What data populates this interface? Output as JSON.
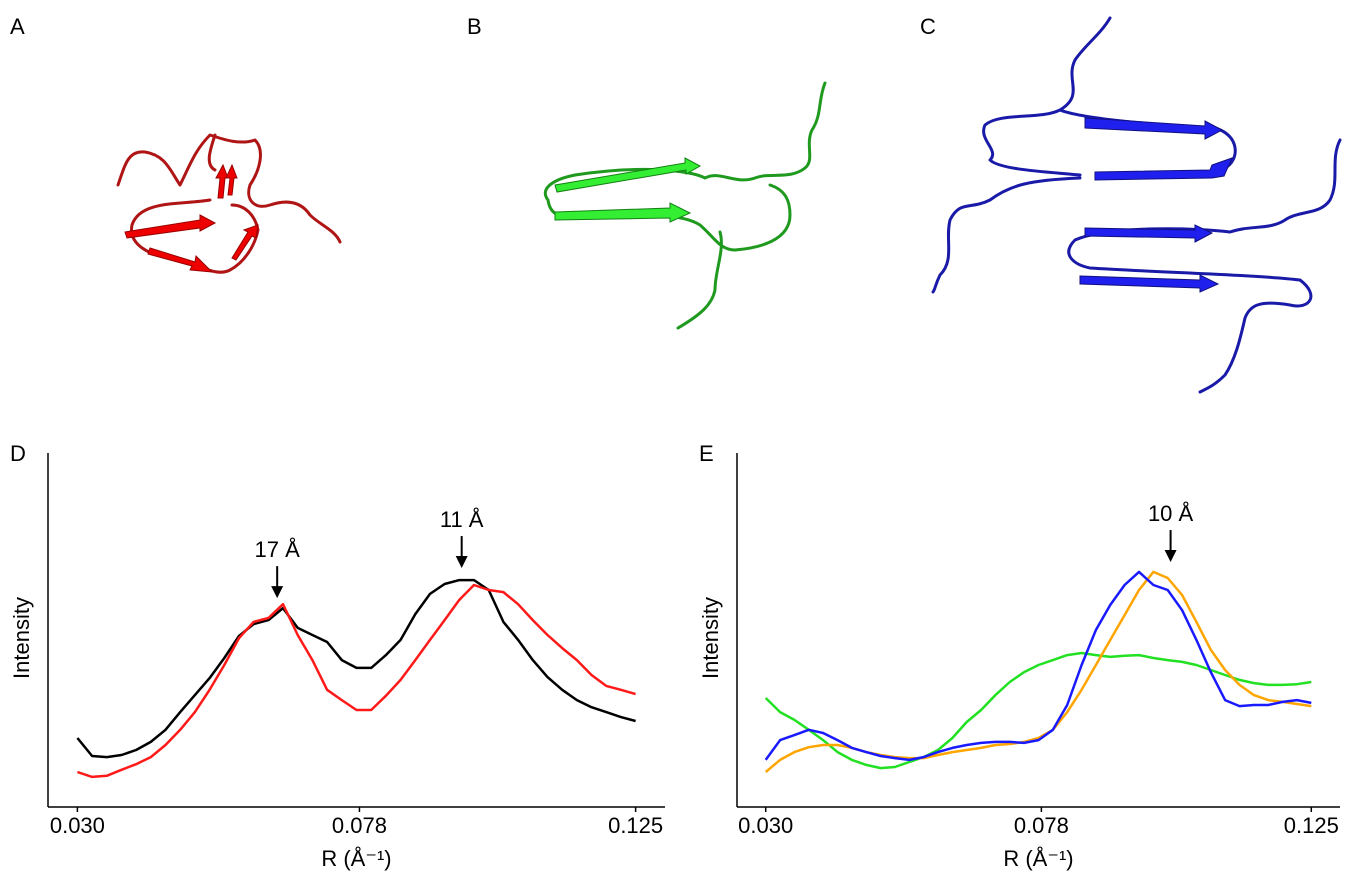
{
  "panels": [
    "A",
    "B",
    "C"
  ],
  "chart_data": [
    {
      "type": "line",
      "panel": "D",
      "y_label": "Intensity",
      "x_label": "R (Å⁻¹)",
      "xlim": [
        0.025,
        0.13
      ],
      "ylim": [
        0,
        100
      ],
      "xticks": [
        {
          "value": 0.03,
          "label": "0.030"
        },
        0.078,
        0.125
      ],
      "x": [
        0.03,
        0.0325,
        0.035,
        0.0375,
        0.04,
        0.0425,
        0.045,
        0.0475,
        0.05,
        0.0525,
        0.055,
        0.0575,
        0.06,
        0.0625,
        0.065,
        0.0675,
        0.07,
        0.0725,
        0.075,
        0.0775,
        0.08,
        0.0825,
        0.085,
        0.0875,
        0.09,
        0.0925,
        0.095,
        0.0975,
        0.1,
        0.1025,
        0.105,
        0.1075,
        0.11,
        0.1125,
        0.115,
        0.1175,
        0.12,
        0.1225,
        0.125
      ],
      "series": [
        {
          "color": "#000000",
          "values": [
            19.5,
            14.4,
            14.1,
            14.7,
            16.1,
            18.4,
            21.8,
            26.8,
            31.6,
            36.4,
            42.1,
            48.3,
            51.7,
            52.8,
            56.2,
            50.6,
            48.6,
            46.6,
            41.5,
            39.3,
            39.3,
            42.9,
            47.2,
            54.5,
            60.2,
            63.0,
            64.1,
            64.1,
            61.3,
            52.3,
            47.2,
            41.5,
            36.7,
            33.1,
            30.2,
            28.2,
            26.8,
            25.4,
            24.3
          ]
        },
        {
          "color": "#ff1a1a",
          "values": [
            9.9,
            8.5,
            8.8,
            10.5,
            12.1,
            14.1,
            17.5,
            21.8,
            26.8,
            33.1,
            40.1,
            47.7,
            52.3,
            53.4,
            57.3,
            48.6,
            41.5,
            33.1,
            30.2,
            27.4,
            27.4,
            31.4,
            35.9,
            41.5,
            47.2,
            52.8,
            58.5,
            62.7,
            61.3,
            60.7,
            57.3,
            52.8,
            48.6,
            44.9,
            41.5,
            37.3,
            34.2,
            33.1,
            31.9
          ]
        }
      ],
      "annotations": [
        {
          "text": "17 Å",
          "x": 0.064,
          "y": 59.0
        },
        {
          "text": "11 Å",
          "x": 0.0954,
          "y": 67.5
        }
      ]
    },
    {
      "type": "line",
      "panel": "E",
      "y_label": "Intensity",
      "x_label": "R (Å⁻¹)",
      "xlim": [
        0.025,
        0.13
      ],
      "ylim": [
        0,
        100
      ],
      "xticks": [
        {
          "value": 0.03,
          "label": "0.030"
        },
        0.078,
        0.125
      ],
      "x": [
        0.03,
        0.0325,
        0.035,
        0.0375,
        0.04,
        0.0425,
        0.045,
        0.0475,
        0.05,
        0.0525,
        0.055,
        0.0575,
        0.06,
        0.0625,
        0.065,
        0.0675,
        0.07,
        0.0725,
        0.075,
        0.0775,
        0.08,
        0.0825,
        0.085,
        0.0875,
        0.09,
        0.0925,
        0.095,
        0.0975,
        0.1,
        0.1025,
        0.105,
        0.1075,
        0.11,
        0.1125,
        0.115,
        0.1175,
        0.12,
        0.1225,
        0.125
      ],
      "series": [
        {
          "color": "#22e022",
          "values": [
            30.8,
            26.8,
            24.6,
            21.8,
            18.9,
            15.5,
            13.3,
            11.9,
            11.0,
            11.3,
            12.7,
            14.1,
            16.1,
            19.5,
            24.0,
            27.4,
            31.6,
            35.3,
            38.1,
            40.1,
            41.5,
            42.9,
            43.5,
            42.9,
            42.4,
            42.7,
            42.9,
            42.1,
            41.5,
            41.0,
            40.1,
            38.7,
            37.3,
            35.9,
            35.0,
            34.5,
            34.5,
            34.7,
            35.3
          ]
        },
        {
          "color": "#ffa500",
          "values": [
            9.9,
            13.3,
            15.5,
            16.9,
            17.5,
            17.5,
            16.7,
            15.5,
            14.7,
            14.1,
            13.8,
            13.8,
            14.7,
            15.5,
            16.1,
            16.7,
            17.5,
            17.8,
            18.4,
            19.5,
            21.8,
            26.8,
            33.1,
            40.1,
            47.2,
            54.2,
            61.3,
            66.4,
            64.7,
            59.9,
            52.3,
            44.4,
            38.7,
            34.5,
            31.6,
            30.2,
            29.7,
            29.1,
            28.5
          ]
        },
        {
          "color": "#1a1aff",
          "values": [
            13.3,
            18.9,
            20.3,
            21.8,
            20.9,
            18.9,
            16.7,
            15.5,
            14.4,
            13.8,
            13.3,
            14.1,
            15.5,
            16.7,
            17.5,
            18.1,
            18.4,
            18.4,
            18.1,
            18.9,
            21.8,
            28.8,
            40.1,
            50.0,
            57.1,
            62.7,
            66.4,
            62.7,
            61.3,
            55.6,
            47.2,
            38.1,
            30.2,
            28.5,
            28.8,
            28.8,
            29.7,
            30.2,
            29.4
          ]
        }
      ],
      "annotations": [
        {
          "text": "10 Å",
          "x": 0.1005,
          "y": 69.2
        }
      ]
    }
  ]
}
